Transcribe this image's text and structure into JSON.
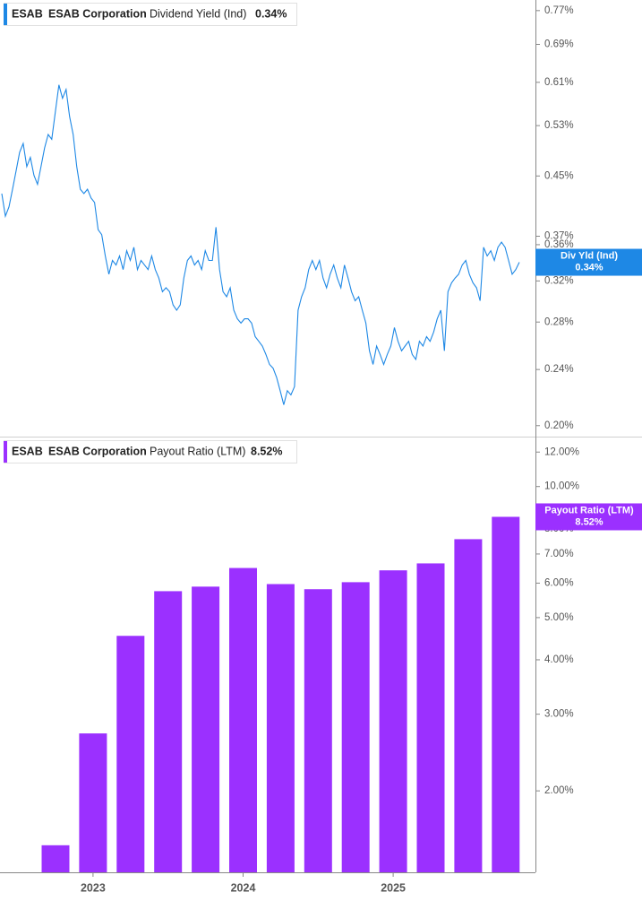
{
  "chart_data": [
    {
      "type": "line",
      "header": {
        "ticker": "ESAB",
        "company": "ESAB Corporation",
        "metric": "Dividend Yield (Ind)"
      },
      "last_value_label": "0.34%",
      "series": [
        {
          "name": "Div Yld (Ind)",
          "color": "#1e88e5",
          "values": [
            0.425,
            0.395,
            0.407,
            0.431,
            0.457,
            0.486,
            0.5,
            0.464,
            0.478,
            0.451,
            0.438,
            0.464,
            0.493,
            0.515,
            0.507,
            0.554,
            0.605,
            0.579,
            0.596,
            0.546,
            0.515,
            0.464,
            0.431,
            0.425,
            0.431,
            0.419,
            0.413,
            0.378,
            0.372,
            0.347,
            0.327,
            0.342,
            0.337,
            0.347,
            0.332,
            0.353,
            0.342,
            0.357,
            0.332,
            0.342,
            0.337,
            0.332,
            0.347,
            0.332,
            0.323,
            0.309,
            0.313,
            0.309,
            0.296,
            0.291,
            0.296,
            0.323,
            0.342,
            0.347,
            0.337,
            0.342,
            0.332,
            0.353,
            0.342,
            0.342,
            0.381,
            0.332,
            0.309,
            0.304,
            0.313,
            0.291,
            0.283,
            0.279,
            0.283,
            0.283,
            0.279,
            0.267,
            0.263,
            0.259,
            0.252,
            0.244,
            0.241,
            0.234,
            0.224,
            0.214,
            0.224,
            0.221,
            0.227,
            0.291,
            0.304,
            0.313,
            0.332,
            0.342,
            0.332,
            0.342,
            0.323,
            0.313,
            0.327,
            0.337,
            0.323,
            0.313,
            0.337,
            0.323,
            0.309,
            0.3,
            0.304,
            0.291,
            0.279,
            0.255,
            0.244,
            0.259,
            0.252,
            0.244,
            0.252,
            0.259,
            0.275,
            0.263,
            0.255,
            0.259,
            0.263,
            0.252,
            0.248,
            0.263,
            0.259,
            0.267,
            0.263,
            0.271,
            0.283,
            0.291,
            0.255,
            0.309,
            0.318,
            0.323,
            0.327,
            0.337,
            0.342,
            0.327,
            0.318,
            0.313,
            0.3,
            0.357,
            0.347,
            0.353,
            0.342,
            0.357,
            0.363,
            0.357,
            0.342,
            0.327,
            0.332,
            0.34
          ]
        }
      ],
      "log_scale": true,
      "ylim": [
        0.193,
        0.797
      ],
      "yticks": [
        {
          "value": 0.77,
          "label": "0.77%"
        },
        {
          "value": 0.69,
          "label": "0.69%"
        },
        {
          "value": 0.61,
          "label": "0.61%"
        },
        {
          "value": 0.53,
          "label": "0.53%"
        },
        {
          "value": 0.45,
          "label": "0.45%"
        },
        {
          "value": 0.37,
          "label": "0.37%"
        },
        {
          "value": 0.36,
          "label": "0.36%"
        },
        {
          "value": 0.32,
          "label": "0.32%"
        },
        {
          "value": 0.28,
          "label": "0.28%"
        },
        {
          "value": 0.24,
          "label": "0.24%"
        },
        {
          "value": 0.2,
          "label": "0.20%"
        }
      ]
    },
    {
      "type": "bar",
      "header": {
        "ticker": "ESAB",
        "company": "ESAB Corporation",
        "metric": "Payout Ratio (LTM)"
      },
      "last_value_label": "8.52%",
      "categories": [
        null,
        "2023",
        null,
        null,
        null,
        "2024",
        null,
        null,
        null,
        "2025",
        null,
        null,
        null
      ],
      "series": [
        {
          "name": "Payout Ratio (LTM)",
          "color": "#9b30ff",
          "values": [
            1.5,
            2.71,
            4.54,
            5.75,
            5.89,
            6.5,
            5.97,
            5.81,
            6.03,
            6.42,
            6.66,
            7.57,
            8.52
          ]
        }
      ],
      "log_scale": true,
      "ylim": [
        1.3,
        12.9
      ],
      "yticks": [
        {
          "value": 12,
          "label": "12.00%"
        },
        {
          "value": 10,
          "label": "10.00%"
        },
        {
          "value": 8,
          "label": "8.00%"
        },
        {
          "value": 7,
          "label": "7.00%"
        },
        {
          "value": 6,
          "label": "6.00%"
        },
        {
          "value": 5,
          "label": "5.00%"
        },
        {
          "value": 4,
          "label": "4.00%"
        },
        {
          "value": 3,
          "label": "3.00%"
        },
        {
          "value": 2,
          "label": "2.00%"
        }
      ]
    }
  ]
}
